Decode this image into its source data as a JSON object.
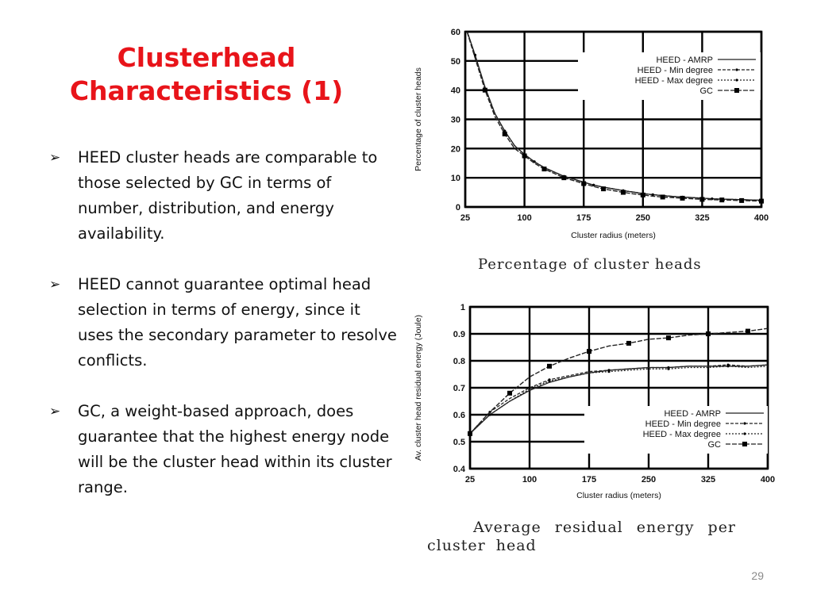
{
  "slide": {
    "title_line1": "Clusterhead",
    "title_line2": "Characteristics (1)",
    "bullets": [
      "HEED cluster heads are comparable to those selected by GC in terms of number, distribution, and energy availability.",
      "HEED cannot guarantee optimal head selection in terms of energy, since it uses the secondary parameter to resolve conflicts.",
      "GC, a weight-based approach, does guarantee that the highest energy node will be the cluster head within its cluster range."
    ],
    "bullet_marker": "➢",
    "page_number": "29",
    "title_color": "#e8141a"
  },
  "chart_data": [
    {
      "type": "line",
      "caption": "Percentage of cluster heads",
      "xlabel": "Cluster radius (meters)",
      "ylabel": "Percentage of cluster heads",
      "xlim": [
        25,
        400
      ],
      "ylim": [
        0,
        60
      ],
      "xticks": [
        25,
        100,
        175,
        250,
        325,
        400
      ],
      "yticks": [
        0,
        10,
        20,
        30,
        40,
        50,
        60
      ],
      "ytick_labels": [
        "0",
        "10",
        "20",
        "30",
        "40",
        "50",
        "60"
      ],
      "grid": true,
      "legend_position": "top-right",
      "x": [
        25,
        37.5,
        50,
        62.5,
        75,
        87.5,
        100,
        112.5,
        125,
        137.5,
        150,
        162.5,
        175,
        187.5,
        200,
        212.5,
        225,
        237.5,
        250,
        262.5,
        275,
        287.5,
        300,
        312.5,
        325,
        337.5,
        350,
        362.5,
        375,
        387.5,
        400
      ],
      "series": [
        {
          "name": "HEED - AMRP",
          "marker": "none",
          "values": [
            62,
            52,
            41,
            32,
            26,
            21,
            18,
            15.5,
            13.5,
            12,
            10.5,
            9.5,
            8.5,
            7.5,
            6.8,
            6.2,
            5.6,
            5.1,
            4.6,
            4.2,
            3.9,
            3.6,
            3.4,
            3.2,
            3,
            2.8,
            2.7,
            2.6,
            2.5,
            2.4,
            2.3
          ]
        },
        {
          "name": "HEED - Min degree",
          "marker": "dot",
          "values": [
            62,
            52,
            41,
            32,
            26,
            21,
            18,
            15.5,
            13.5,
            12,
            10.5,
            9.5,
            8.5,
            7.5,
            6.8,
            6.2,
            5.6,
            5.1,
            4.6,
            4.2,
            3.9,
            3.6,
            3.4,
            3.2,
            3,
            2.8,
            2.7,
            2.6,
            2.5,
            2.4,
            2.3
          ]
        },
        {
          "name": "HEED - Max degree",
          "marker": "dot",
          "values": [
            62,
            52,
            41,
            32,
            26,
            21,
            18,
            15.5,
            13.5,
            12,
            10.5,
            9.5,
            8.5,
            7.5,
            6.8,
            6.2,
            5.6,
            5.1,
            4.6,
            4.2,
            3.9,
            3.6,
            3.4,
            3.2,
            3,
            2.8,
            2.7,
            2.6,
            2.5,
            2.4,
            2.3
          ]
        },
        {
          "name": "GC",
          "marker": "square",
          "values": [
            62,
            51,
            40,
            31,
            25,
            20,
            17.5,
            15,
            13,
            11.5,
            10,
            9,
            8,
            7,
            6.2,
            5.6,
            5,
            4.5,
            4.1,
            3.7,
            3.4,
            3.2,
            3,
            2.8,
            2.6,
            2.5,
            2.4,
            2.3,
            2.2,
            2.1,
            2
          ]
        }
      ]
    },
    {
      "type": "line",
      "caption_line1": "Average residual energy per",
      "caption_line2": "cluster head",
      "xlabel": "Cluster radius (meters)",
      "ylabel": "Av. cluster head residual energy (Joule)",
      "xlim": [
        25,
        400
      ],
      "ylim": [
        0.4,
        1
      ],
      "xticks": [
        25,
        100,
        175,
        250,
        325,
        400
      ],
      "yticks": [
        0.4,
        0.5,
        0.6,
        0.7,
        0.8,
        0.9,
        1
      ],
      "ytick_labels": [
        "0.4",
        "0.5",
        "0.6",
        "0.7",
        "0.8",
        "0.9",
        "1"
      ],
      "grid": true,
      "legend_position": "bottom-right",
      "x": [
        25,
        50,
        75,
        100,
        125,
        150,
        175,
        200,
        225,
        250,
        275,
        300,
        325,
        350,
        375,
        400
      ],
      "series": [
        {
          "name": "HEED - AMRP",
          "marker": "none",
          "values": [
            0.53,
            0.6,
            0.65,
            0.69,
            0.72,
            0.74,
            0.755,
            0.765,
            0.77,
            0.775,
            0.775,
            0.78,
            0.78,
            0.78,
            0.78,
            0.785
          ]
        },
        {
          "name": "HEED - Min degree",
          "marker": "dot",
          "values": [
            0.53,
            0.61,
            0.66,
            0.7,
            0.73,
            0.745,
            0.76,
            0.765,
            0.77,
            0.775,
            0.775,
            0.78,
            0.78,
            0.785,
            0.78,
            0.785
          ]
        },
        {
          "name": "HEED - Max degree",
          "marker": "dot",
          "values": [
            0.53,
            0.6,
            0.65,
            0.695,
            0.725,
            0.74,
            0.755,
            0.76,
            0.765,
            0.77,
            0.77,
            0.775,
            0.775,
            0.78,
            0.775,
            0.78
          ]
        },
        {
          "name": "GC",
          "marker": "square",
          "values": [
            0.53,
            0.61,
            0.68,
            0.74,
            0.78,
            0.81,
            0.835,
            0.855,
            0.865,
            0.88,
            0.885,
            0.895,
            0.9,
            0.905,
            0.91,
            0.92
          ]
        }
      ]
    }
  ]
}
